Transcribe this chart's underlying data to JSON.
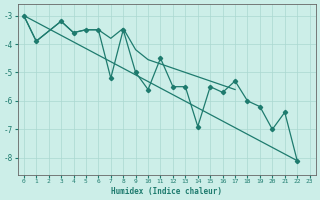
{
  "xlabel": "Humidex (Indice chaleur)",
  "color": "#1e7b6e",
  "bg_color": "#cceee8",
  "grid_color": "#aad8d0",
  "ylim": [
    -8.6,
    -2.6
  ],
  "xlim": [
    -0.5,
    23.5
  ],
  "yticks": [
    -8,
    -7,
    -6,
    -5,
    -4,
    -3
  ],
  "xticks": [
    0,
    1,
    2,
    3,
    4,
    5,
    6,
    7,
    8,
    9,
    10,
    11,
    12,
    13,
    14,
    15,
    16,
    17,
    18,
    19,
    20,
    21,
    22,
    23
  ],
  "main_x": [
    0,
    1,
    3,
    4,
    5,
    6,
    7,
    8,
    9,
    10,
    11,
    12,
    13,
    14,
    15,
    16,
    17,
    18,
    19,
    20,
    21,
    22
  ],
  "main_y": [
    -3.0,
    -3.9,
    -3.2,
    -3.6,
    -3.5,
    -3.5,
    -5.2,
    -3.5,
    -5.0,
    -5.6,
    -4.5,
    -5.5,
    -5.5,
    -6.9,
    -5.5,
    -5.7,
    -5.3,
    -6.0,
    -6.2,
    -7.0,
    -6.4,
    -8.1
  ],
  "smooth_x": [
    0,
    1,
    3,
    4,
    5,
    6,
    7,
    8,
    9,
    10,
    11,
    12,
    13,
    14,
    15,
    16,
    17
  ],
  "smooth_y": [
    -3.0,
    -3.9,
    -3.2,
    -3.6,
    -3.5,
    -3.5,
    -3.8,
    -3.45,
    -4.2,
    -4.55,
    -4.7,
    -4.85,
    -5.0,
    -5.15,
    -5.3,
    -5.45,
    -5.6
  ],
  "trend_x": [
    0,
    22
  ],
  "trend_y": [
    -3.0,
    -8.1
  ]
}
